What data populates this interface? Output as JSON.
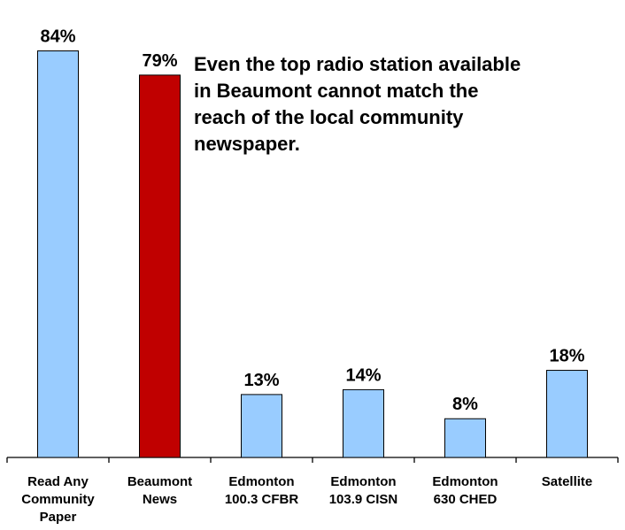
{
  "chart_data": {
    "type": "bar",
    "categories": [
      [
        "Read Any",
        "Community",
        "Paper"
      ],
      [
        "Beaumont",
        "News"
      ],
      [
        "Edmonton",
        "100.3 CFBR"
      ],
      [
        "Edmonton",
        "103.9 CISN"
      ],
      [
        "Edmonton",
        "630 CHED"
      ],
      [
        "Satellite"
      ]
    ],
    "values": [
      84,
      79,
      13,
      14,
      8,
      18
    ],
    "value_labels": [
      "84%",
      "79%",
      "13%",
      "14%",
      "8%",
      "18%"
    ],
    "colors": [
      "#99ccff",
      "#c00000",
      "#99ccff",
      "#99ccff",
      "#99ccff",
      "#99ccff"
    ],
    "ylim": [
      0,
      100
    ],
    "grid": false,
    "legend": "none",
    "annotation": [
      "Even the top radio station available",
      "in Beaumont cannot match the",
      "reach of the local community",
      "newspaper."
    ]
  }
}
